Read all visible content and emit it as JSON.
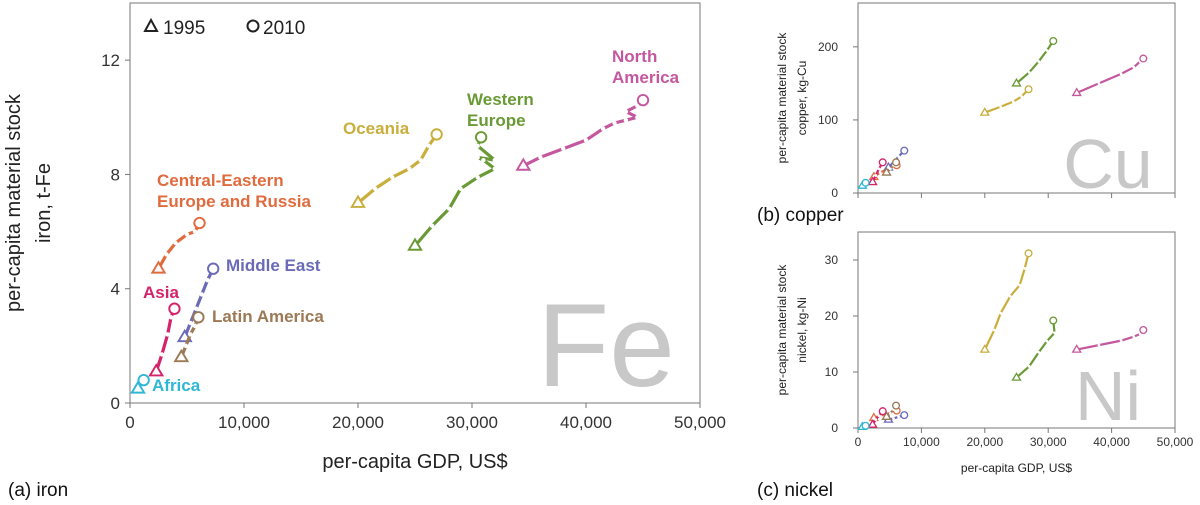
{
  "captions": {
    "a": "(a) iron",
    "b": "(b) copper",
    "c": "(c) nickel"
  },
  "legend": {
    "start": "1995",
    "end": "2010"
  },
  "colors": {
    "North America": "#c4579e",
    "Western Europe": "#6a9a35",
    "Oceania": "#c9ae3c",
    "Central-Eastern Europe and Russia": "#e06b3f",
    "Middle East": "#6b6ab8",
    "Latin America": "#9b7a55",
    "Asia": "#d4236a",
    "Africa": "#2fb7d6"
  },
  "chart_data": [
    {
      "id": "iron",
      "type": "line",
      "element_symbol": "Fe",
      "xlabel": "per-capita GDP, US$",
      "ylabel": [
        "per-capita material stock",
        "iron, t-Fe"
      ],
      "xlim": [
        0,
        50000
      ],
      "ylim": [
        0,
        14
      ],
      "xticks": [
        "0",
        "10,000",
        "20,000",
        "30,000",
        "40,000",
        "50,000"
      ],
      "yticks": [
        "0",
        "4",
        "8",
        "12"
      ],
      "legend_placement": "top-left",
      "series": [
        {
          "name": "North America",
          "label_lines": [
            "North",
            "America"
          ],
          "x": [
            34500,
            36000,
            38000,
            40000,
            41500,
            42500,
            43500,
            44500,
            43500,
            44500,
            45000
          ],
          "y": [
            8.3,
            8.6,
            8.9,
            9.2,
            9.6,
            9.8,
            9.9,
            10.0,
            10.2,
            10.4,
            10.6
          ]
        },
        {
          "name": "Western Europe",
          "label_lines": [
            "Western",
            "Europe"
          ],
          "x": [
            25000,
            26500,
            28000,
            29000,
            30500,
            32000,
            31000,
            30500,
            32000,
            30500,
            30800
          ],
          "y": [
            5.5,
            6.2,
            6.8,
            7.5,
            7.9,
            8.2,
            8.5,
            8.6,
            8.5,
            9.0,
            9.3
          ]
        },
        {
          "name": "Oceania",
          "label_lines": [
            "Oceania"
          ],
          "x": [
            20000,
            21500,
            23000,
            24500,
            25500,
            26200,
            26900
          ],
          "y": [
            7.0,
            7.5,
            7.9,
            8.2,
            8.5,
            9.0,
            9.4
          ]
        },
        {
          "name": "Central-Eastern Europe and Russia",
          "label_lines": [
            "Central-Eastern",
            "Europe and Russia"
          ],
          "x": [
            2500,
            3200,
            4000,
            5000,
            5700,
            6100
          ],
          "y": [
            4.7,
            5.2,
            5.6,
            5.9,
            6.0,
            6.3
          ]
        },
        {
          "name": "Middle East",
          "label_lines": [
            "Middle East"
          ],
          "x": [
            4800,
            5300,
            5800,
            6300,
            6800,
            7300
          ],
          "y": [
            2.3,
            2.8,
            3.3,
            3.8,
            4.3,
            4.7
          ]
        },
        {
          "name": "Latin America",
          "label_lines": [
            "Latin America"
          ],
          "x": [
            4500,
            4900,
            5300,
            5700,
            6000
          ],
          "y": [
            1.6,
            2.0,
            2.4,
            2.7,
            3.0
          ]
        },
        {
          "name": "Asia",
          "label_lines": [
            "Asia"
          ],
          "x": [
            2300,
            2800,
            3300,
            3600,
            3900
          ],
          "y": [
            1.1,
            1.7,
            2.4,
            3.0,
            3.3
          ]
        },
        {
          "name": "Africa",
          "label_lines": [
            "Africa"
          ],
          "x": [
            700,
            950,
            1200
          ],
          "y": [
            0.5,
            0.65,
            0.8
          ]
        }
      ]
    },
    {
      "id": "copper",
      "type": "line",
      "element_symbol": "Cu",
      "xlabel": "",
      "ylabel": [
        "per-capita material stock",
        "copper, kg-Cu"
      ],
      "xlim": [
        0,
        50000
      ],
      "ylim": [
        0,
        260
      ],
      "xticks": [],
      "yticks": [
        "0",
        "100",
        "200"
      ],
      "series": [
        {
          "name": "North America",
          "x": [
            34500,
            38000,
            41500,
            43500,
            44500,
            45000
          ],
          "y": [
            137,
            150,
            163,
            172,
            180,
            184
          ]
        },
        {
          "name": "Western Europe",
          "x": [
            25000,
            27000,
            28500,
            29800,
            30800
          ],
          "y": [
            150,
            165,
            180,
            195,
            208
          ]
        },
        {
          "name": "Oceania",
          "x": [
            20000,
            22500,
            24500,
            25800,
            26900
          ],
          "y": [
            110,
            118,
            125,
            132,
            142
          ]
        },
        {
          "name": "Central-Eastern Europe and Russia",
          "x": [
            2500,
            3500,
            4500,
            5500,
            6100
          ],
          "y": [
            22,
            28,
            32,
            35,
            38
          ]
        },
        {
          "name": "Middle East",
          "x": [
            4800,
            5600,
            6400,
            7300
          ],
          "y": [
            35,
            42,
            50,
            58
          ]
        },
        {
          "name": "Latin America",
          "x": [
            4500,
            5100,
            5600,
            6000
          ],
          "y": [
            28,
            33,
            38,
            42
          ]
        },
        {
          "name": "Asia",
          "x": [
            2300,
            2800,
            3300,
            3900
          ],
          "y": [
            15,
            24,
            33,
            42
          ]
        },
        {
          "name": "Africa",
          "x": [
            700,
            950,
            1200
          ],
          "y": [
            10,
            12,
            14
          ]
        }
      ]
    },
    {
      "id": "nickel",
      "type": "line",
      "element_symbol": "Ni",
      "xlabel": "per-capita GDP, US$",
      "ylabel": [
        "per-capita material stock",
        "nickel, kg-Ni"
      ],
      "xlim": [
        0,
        50000
      ],
      "ylim": [
        0,
        35
      ],
      "xticks": [
        "0",
        "10,000",
        "20,000",
        "30,000",
        "40,000",
        "50,000"
      ],
      "yticks": [
        "0",
        "10",
        "20",
        "30"
      ],
      "series": [
        {
          "name": "North America",
          "x": [
            34500,
            38000,
            41500,
            43500,
            44500,
            45000
          ],
          "y": [
            14.0,
            14.8,
            15.6,
            16.3,
            16.8,
            17.5
          ]
        },
        {
          "name": "Western Europe",
          "x": [
            25000,
            27000,
            28500,
            29800,
            31000,
            30800
          ],
          "y": [
            9.0,
            11.0,
            13.5,
            15.5,
            17.0,
            19.2
          ]
        },
        {
          "name": "Oceania",
          "x": [
            20000,
            21500,
            22500,
            24000,
            25500,
            26300,
            26900
          ],
          "y": [
            14.0,
            17.5,
            20.5,
            23.5,
            25.5,
            28.5,
            31.2
          ]
        },
        {
          "name": "Central-Eastern Europe and Russia",
          "x": [
            2500,
            3500,
            4500,
            5500,
            6100
          ],
          "y": [
            1.8,
            2.2,
            2.5,
            2.8,
            3.1
          ]
        },
        {
          "name": "Middle East",
          "x": [
            4800,
            5600,
            6400,
            7300
          ],
          "y": [
            1.5,
            1.7,
            2.0,
            2.3
          ]
        },
        {
          "name": "Latin America",
          "x": [
            4500,
            5100,
            5600,
            6000
          ],
          "y": [
            2.0,
            2.6,
            3.3,
            4.0
          ]
        },
        {
          "name": "Asia",
          "x": [
            2300,
            2800,
            3300,
            3900
          ],
          "y": [
            0.6,
            1.5,
            2.2,
            3.0
          ]
        },
        {
          "name": "Africa",
          "x": [
            700,
            950,
            1200
          ],
          "y": [
            0.2,
            0.3,
            0.4
          ]
        }
      ]
    }
  ]
}
